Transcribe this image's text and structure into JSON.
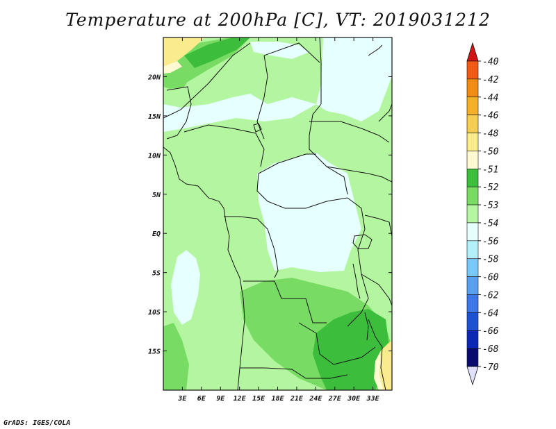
{
  "title": "Temperature at 200hPa [C], VT: 2019031212",
  "credit": "GrADS: IGES/COLA",
  "map": {
    "lon_range": [
      0,
      36
    ],
    "lat_range": [
      -20,
      25
    ],
    "lat_ticks": [
      {
        "label": "20N",
        "value": 20
      },
      {
        "label": "15N",
        "value": 15
      },
      {
        "label": "10N",
        "value": 10
      },
      {
        "label": "5N",
        "value": 5
      },
      {
        "label": "EQ",
        "value": 0
      },
      {
        "label": "5S",
        "value": -5
      },
      {
        "label": "10S",
        "value": -10
      },
      {
        "label": "15S",
        "value": -15
      }
    ],
    "lon_ticks": [
      {
        "label": "3E",
        "value": 3
      },
      {
        "label": "6E",
        "value": 6
      },
      {
        "label": "9E",
        "value": 9
      },
      {
        "label": "12E",
        "value": 12
      },
      {
        "label": "15E",
        "value": 15
      },
      {
        "label": "18E",
        "value": 18
      },
      {
        "label": "21E",
        "value": 21
      },
      {
        "label": "24E",
        "value": 24
      },
      {
        "label": "27E",
        "value": 27
      },
      {
        "label": "30E",
        "value": 30
      },
      {
        "label": "33E",
        "value": 33
      }
    ]
  },
  "colorbar": {
    "levels": [
      "-40",
      "-42",
      "-44",
      "-46",
      "-48",
      "-50",
      "-51",
      "-52",
      "-53",
      "-54",
      "-56",
      "-58",
      "-60",
      "-62",
      "-64",
      "-66",
      "-68",
      "-70"
    ],
    "colors": [
      "#f01e1e",
      "#f05a14",
      "#f08c14",
      "#f5af28",
      "#f5cd50",
      "#faeb8c",
      "#fffad2",
      "#3cbe3c",
      "#78dc64",
      "#b4f5a0",
      "#e6ffff",
      "#b4f0fa",
      "#78c8fa",
      "#5aa0f0",
      "#3c78e6",
      "#1e50d2",
      "#0a28b4",
      "#0a0a6e"
    ],
    "top_arrow_color": "#d21414",
    "bottom_arrow_color": "#e0e0fa"
  },
  "field_colors": {
    "m50": "#faeb8c",
    "m51": "#fffad2",
    "m52": "#3cbe3c",
    "m53": "#78dc64",
    "m54": "#b4f5a0",
    "m56": "#e6ffff"
  }
}
